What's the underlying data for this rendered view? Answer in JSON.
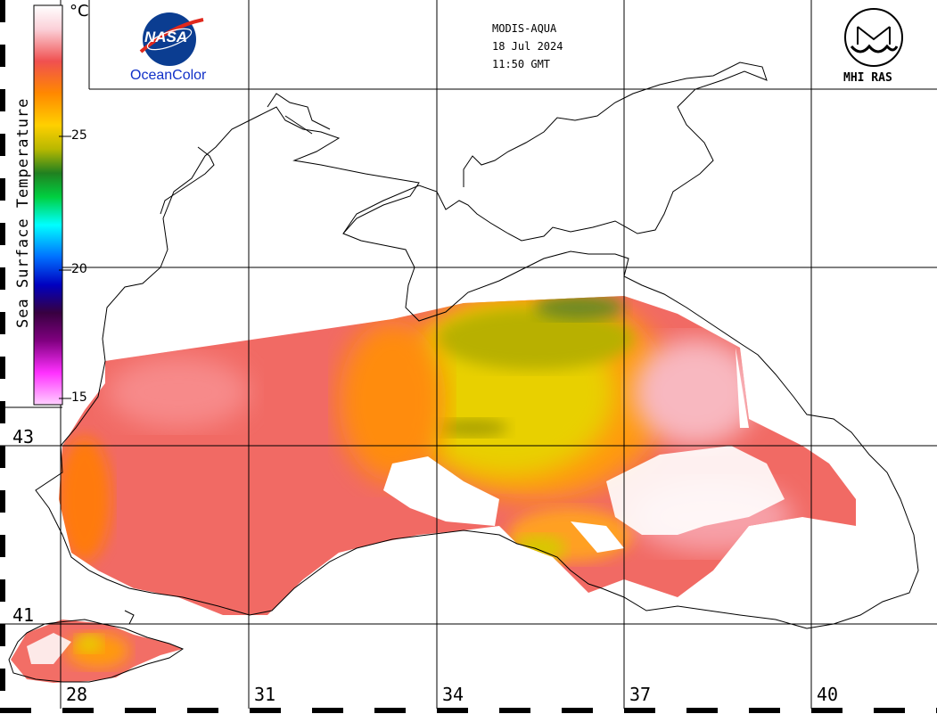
{
  "header": {
    "satellite": "MODIS-AQUA",
    "date": "18 Jul 2024",
    "time": "11:50 GMT"
  },
  "logos": {
    "nasa_emblem_text": "NASA",
    "nasa_caption": "OceanColor",
    "mhi_caption": "MHI RAS"
  },
  "colorbar": {
    "title": "Sea Surface Temperature",
    "unit": "°C",
    "ticks": [
      "25",
      "20",
      "15"
    ],
    "palette": [
      "#ffffff",
      "#fbd6dd",
      "#f05a5a",
      "#ff8c00",
      "#e6e600",
      "#c8c800",
      "#208020",
      "#00c020",
      "#00ffff",
      "#0060ff",
      "#0000c0",
      "#400060",
      "#ff20ff",
      "#ffc0ff"
    ]
  },
  "axes": {
    "longitude_labels": [
      "28",
      "31",
      "34",
      "37",
      "40"
    ],
    "latitude_labels": [
      "43",
      "41"
    ]
  }
}
